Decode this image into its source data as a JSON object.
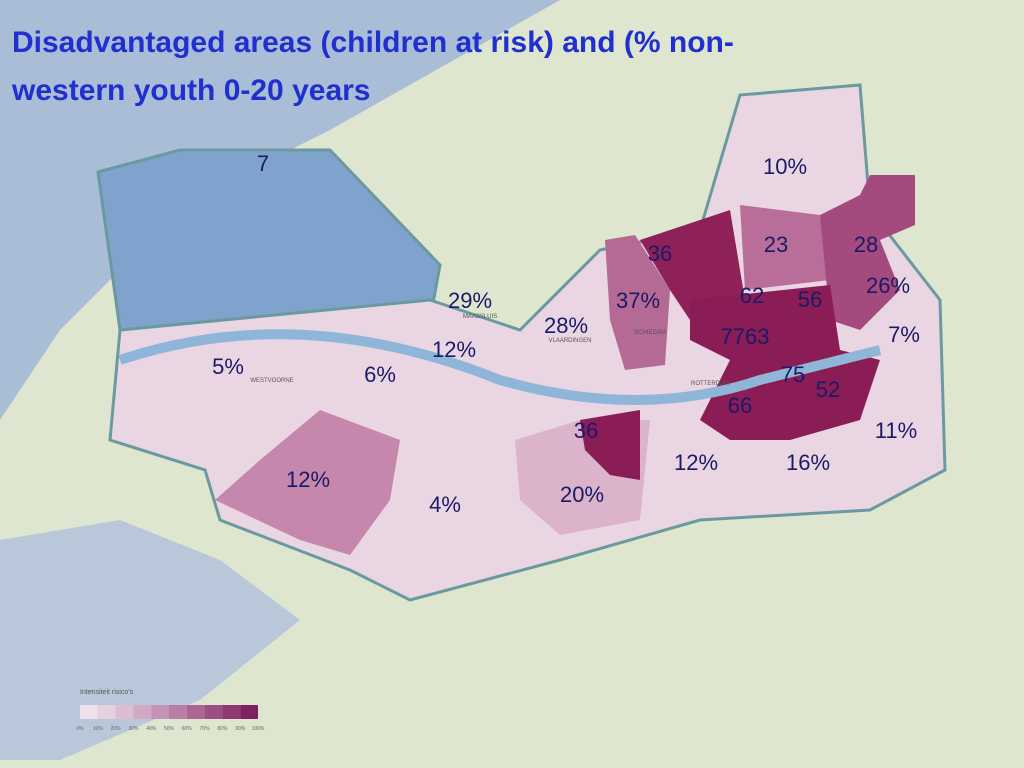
{
  "title": [
    "Disadvantaged areas (children at risk) and (% non-",
    "western youth 0-20 years"
  ],
  "labels": [
    "7",
    "10%",
    "36",
    "23",
    "28",
    "26%",
    "62",
    "56",
    "37%",
    "29%",
    "28%",
    "7%",
    "7763",
    "12%",
    "5%",
    "6%",
    "75",
    "52",
    "66",
    "36",
    "11%",
    "12%",
    "16%",
    "12%",
    "4%",
    "20%"
  ],
  "places": [
    "MAASSLUIS",
    "VLAARDINGEN",
    "SCHIEDAM",
    "ROTTERDAM",
    "WESTVOORNE"
  ],
  "legend": {
    "title": "Intensiteit risico's",
    "ticks": [
      "0%",
      "10%",
      "20%",
      "30%",
      "40%",
      "50%",
      "60%",
      "70%",
      "80%",
      "90%",
      "100%"
    ]
  }
}
